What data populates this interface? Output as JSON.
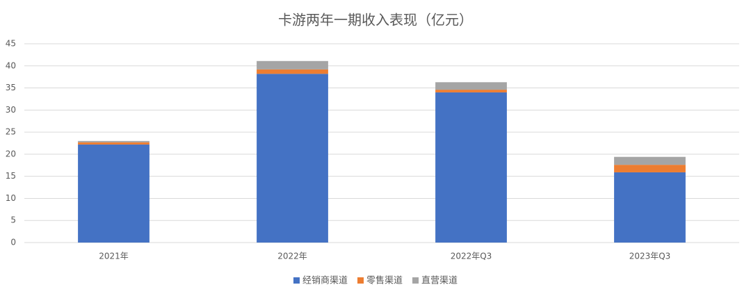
{
  "chart_data": {
    "type": "stacked-bar",
    "title": "卡游两年一期收入表现（亿元）",
    "categories": [
      "2021年",
      "2022年",
      "2022年Q3",
      "2023年Q3"
    ],
    "series": [
      {
        "name": "经销商渠道",
        "color": "#4472c4",
        "values": [
          22.2,
          38.2,
          34.0,
          15.9
        ]
      },
      {
        "name": "零售渠道",
        "color": "#ed7d31",
        "values": [
          0.5,
          1.0,
          0.6,
          1.7
        ]
      },
      {
        "name": "直营渠道",
        "color": "#a5a5a5",
        "values": [
          0.3,
          1.9,
          1.7,
          1.8
        ]
      }
    ],
    "ylim": [
      0,
      45
    ],
    "yticks": [
      0,
      5,
      10,
      15,
      20,
      25,
      30,
      35,
      40,
      45
    ],
    "grid": true,
    "legend": "bottom"
  }
}
